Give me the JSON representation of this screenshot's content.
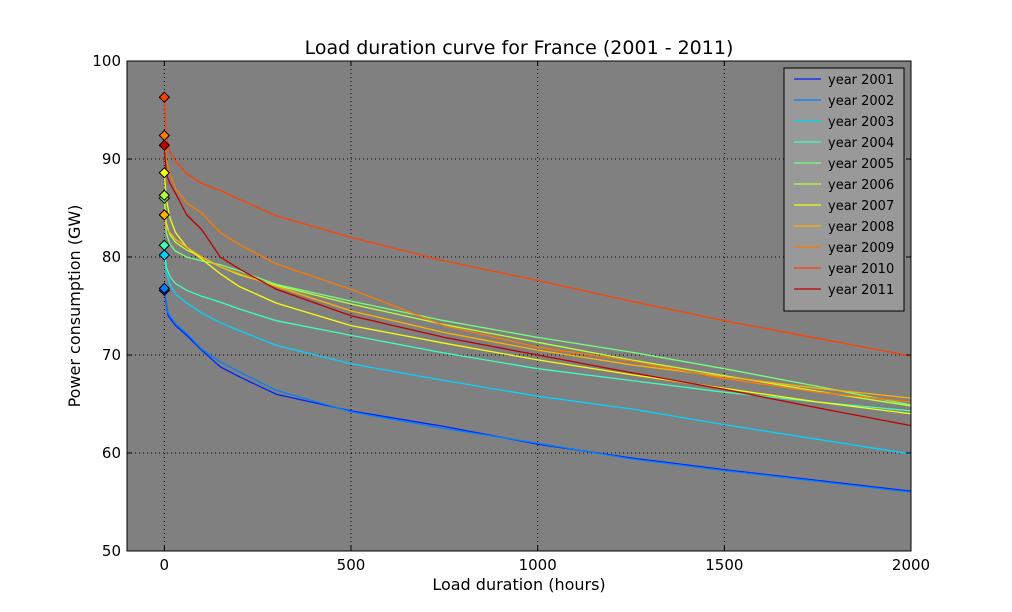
{
  "chart_data": {
    "type": "line",
    "title": "Load duration curve for France (2001 - 2011)",
    "xlabel": "Load duration (hours)",
    "ylabel": "Power consumption (GW)",
    "xlim": [
      -100,
      2000
    ],
    "ylim": [
      50,
      100
    ],
    "xticks": [
      0,
      500,
      1000,
      1500,
      2000
    ],
    "yticks": [
      50,
      60,
      70,
      80,
      90,
      100
    ],
    "grid": true,
    "legend_position": "top-right",
    "background": "#808080",
    "series": [
      {
        "name": "year 2001",
        "color": "#0022ff",
        "x": [
          0,
          10,
          30,
          60,
          100,
          150,
          200,
          300,
          500,
          750,
          1000,
          1250,
          1500,
          1750,
          2000
        ],
        "y": [
          76.6,
          74,
          73,
          72,
          70.5,
          68.8,
          67.8,
          66,
          64.3,
          62.7,
          60.9,
          59.5,
          58.3,
          57.2,
          56.1
        ]
      },
      {
        "name": "year 2002",
        "color": "#0080ff",
        "x": [
          0,
          10,
          30,
          60,
          100,
          150,
          200,
          300,
          500,
          750,
          1000,
          1250,
          1500,
          1750,
          2000
        ],
        "y": [
          76.8,
          74.3,
          73.2,
          72.2,
          70.6,
          69.3,
          68.3,
          66.4,
          64.2,
          62.5,
          61,
          59.4,
          58.2,
          57.1,
          56
        ]
      },
      {
        "name": "year 2003",
        "color": "#00d4ff",
        "x": [
          0,
          5,
          15,
          30,
          60,
          100,
          150,
          200,
          300,
          500,
          750,
          1000,
          1250,
          1500,
          1750,
          2000
        ],
        "y": [
          80.2,
          78.5,
          77.2,
          76.2,
          75.3,
          74.3,
          73.3,
          72.5,
          71,
          69.1,
          67.4,
          65.8,
          64.5,
          62.9,
          61.4,
          59.9
        ]
      },
      {
        "name": "year 2004",
        "color": "#3dffb9",
        "x": [
          0,
          5,
          15,
          30,
          60,
          100,
          150,
          200,
          300,
          500,
          750,
          1000,
          1250,
          1500,
          1750,
          2000
        ],
        "y": [
          81.2,
          79,
          78,
          77.3,
          76.6,
          76,
          75.4,
          74.7,
          73.5,
          72,
          70.2,
          68.6,
          67.4,
          66.2,
          65.2,
          64.3
        ]
      },
      {
        "name": "year 2005",
        "color": "#76ff7a",
        "x": [
          0,
          5,
          15,
          30,
          60,
          100,
          150,
          200,
          300,
          500,
          750,
          1000,
          1250,
          1500,
          1750,
          2000
        ],
        "y": [
          86,
          82.5,
          81.3,
          80.6,
          80,
          79.6,
          79.2,
          78.6,
          77.2,
          75.5,
          73.5,
          71.8,
          70.3,
          68.6,
          66.8,
          64.9
        ]
      },
      {
        "name": "year 2006",
        "color": "#b9ff3d",
        "x": [
          0,
          5,
          15,
          30,
          60,
          100,
          150,
          200,
          300,
          500,
          750,
          1000,
          1250,
          1500,
          1750,
          2000
        ],
        "y": [
          86.3,
          83.5,
          82.3,
          81.5,
          80.7,
          80,
          79,
          78.2,
          77.1,
          75.2,
          73.1,
          71.3,
          69.5,
          67.9,
          66.3,
          64.8
        ]
      },
      {
        "name": "year 2007",
        "color": "#f5ff0a",
        "x": [
          0,
          5,
          15,
          30,
          60,
          100,
          150,
          200,
          300,
          500,
          750,
          1000,
          1250,
          1500,
          1750,
          2000
        ],
        "y": [
          88.6,
          86,
          84,
          82.5,
          81,
          79.8,
          78.3,
          77,
          75.3,
          73,
          71.2,
          69.5,
          68,
          66.6,
          65.2,
          64
        ]
      },
      {
        "name": "year 2008",
        "color": "#ffb000",
        "x": [
          0,
          5,
          15,
          30,
          60,
          100,
          150,
          200,
          300,
          500,
          750,
          1000,
          1250,
          1500,
          1750,
          2000
        ],
        "y": [
          84.3,
          83,
          82.5,
          81.8,
          81,
          80,
          79,
          78.3,
          77,
          74.5,
          72.3,
          70.5,
          69,
          67.8,
          66.6,
          65.6
        ]
      },
      {
        "name": "year 2009",
        "color": "#ff7a00",
        "x": [
          0,
          5,
          15,
          30,
          60,
          100,
          150,
          200,
          300,
          400,
          500,
          750,
          1000,
          1250,
          1500,
          1750,
          2000
        ],
        "y": [
          92.4,
          90,
          88.5,
          87,
          85.5,
          84.5,
          82.5,
          81.3,
          79.3,
          78,
          76.7,
          73,
          70.8,
          69.4,
          67.6,
          66.2,
          65.2
        ]
      },
      {
        "name": "year 2010",
        "color": "#ff4000",
        "x": [
          0,
          5,
          15,
          30,
          60,
          100,
          150,
          200,
          300,
          500,
          750,
          1000,
          1250,
          1500,
          1750,
          2000
        ],
        "y": [
          96.3,
          92.5,
          90.7,
          89.8,
          88.5,
          87.5,
          86.8,
          85.9,
          84.2,
          82,
          79.6,
          77.6,
          75.5,
          73.5,
          71.7,
          69.9
        ]
      },
      {
        "name": "year 2011",
        "color": "#c00000",
        "x": [
          0,
          5,
          15,
          30,
          60,
          100,
          150,
          200,
          300,
          500,
          750,
          1000,
          1250,
          1500,
          1750,
          2000
        ],
        "y": [
          91.4,
          88.5,
          87.5,
          86.5,
          84.3,
          82.8,
          80,
          78.8,
          76.7,
          74,
          71.8,
          70,
          68.2,
          66.5,
          64.6,
          62.8
        ]
      }
    ]
  }
}
